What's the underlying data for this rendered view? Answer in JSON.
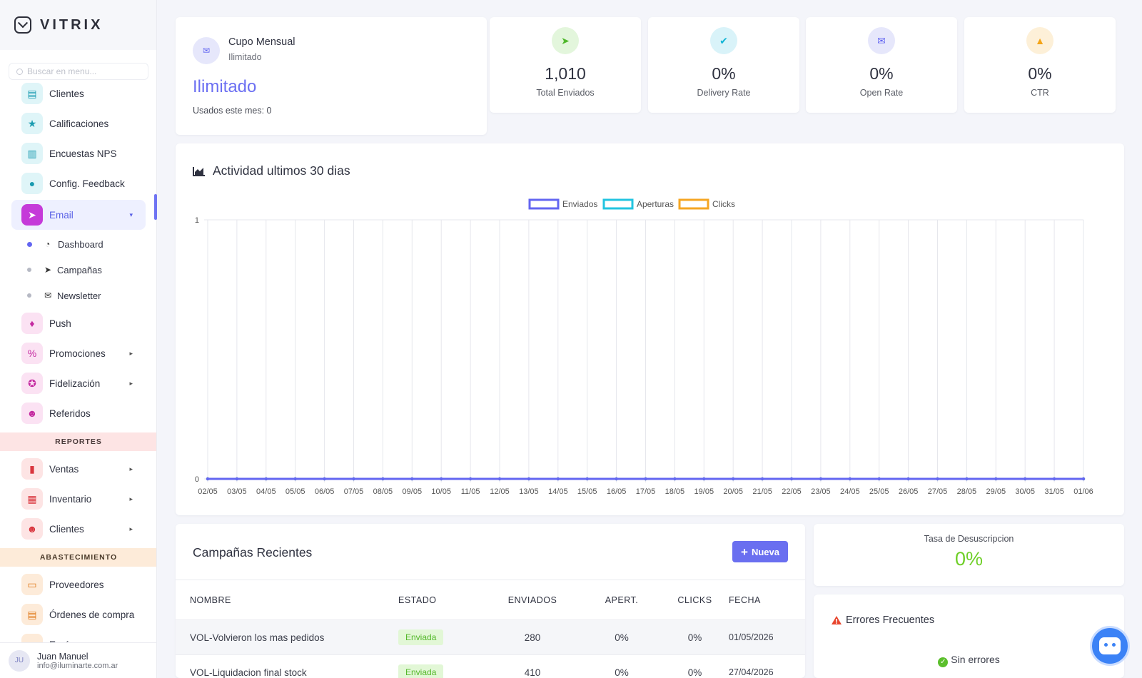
{
  "brand": {
    "name": "VITRIX"
  },
  "sidebar": {
    "search_placeholder": "Buscar en menu...",
    "items": [
      {
        "label": "Clientes",
        "icon": "address-book-icon",
        "glyph": "▤",
        "tone": "ic-cyan"
      },
      {
        "label": "Calificaciones",
        "icon": "star-icon",
        "glyph": "★",
        "tone": "ic-cyan"
      },
      {
        "label": "Encuestas NPS",
        "icon": "chart-square-icon",
        "glyph": "▥",
        "tone": "ic-cyan"
      },
      {
        "label": "Config. Feedback",
        "icon": "comments-icon",
        "glyph": "●",
        "tone": "ic-cyan"
      }
    ],
    "email": {
      "label": "Email",
      "icon": "paper-plane-icon",
      "glyph": "➤",
      "arrow": "▾",
      "subitems": [
        {
          "label": "Dashboard",
          "icon": "pie-chart-icon",
          "glyph": "◔",
          "active": true
        },
        {
          "label": "Campañas",
          "icon": "paper-plane-icon",
          "glyph": "➤",
          "active": false
        },
        {
          "label": "Newsletter",
          "icon": "envelope-open-icon",
          "glyph": "✉",
          "active": false
        }
      ]
    },
    "items2": [
      {
        "label": "Push",
        "icon": "bell-icon",
        "glyph": "♦",
        "tone": "ic-pink",
        "arrow": ""
      },
      {
        "label": "Promociones",
        "icon": "percent-icon",
        "glyph": "%",
        "tone": "ic-pink",
        "arrow": "▸"
      },
      {
        "label": "Fidelización",
        "icon": "medal-icon",
        "glyph": "✪",
        "tone": "ic-pink",
        "arrow": "▸"
      },
      {
        "label": "Referidos",
        "icon": "users-icon",
        "glyph": "☻",
        "tone": "ic-pink",
        "arrow": ""
      }
    ],
    "section_reportes": "REPORTES",
    "items3": [
      {
        "label": "Ventas",
        "icon": "bar-chart-icon",
        "glyph": "▮",
        "tone": "ic-red",
        "arrow": "▸"
      },
      {
        "label": "Inventario",
        "icon": "boxes-icon",
        "glyph": "▦",
        "tone": "ic-red",
        "arrow": "▸"
      },
      {
        "label": "Clientes",
        "icon": "users-icon",
        "glyph": "☻",
        "tone": "ic-red",
        "arrow": "▸"
      }
    ],
    "section_abastecimiento": "ABASTECIMIENTO",
    "items4": [
      {
        "label": "Proveedores",
        "icon": "id-card-icon",
        "glyph": "▭",
        "tone": "ic-orange",
        "arrow": ""
      },
      {
        "label": "Órdenes de compra",
        "icon": "file-invoice-icon",
        "glyph": "▤",
        "tone": "ic-orange",
        "arrow": ""
      },
      {
        "label": "Envíos",
        "icon": "truck-icon",
        "glyph": "▬",
        "tone": "ic-orange",
        "arrow": "▸"
      }
    ],
    "user": {
      "initials": "JU",
      "name": "Juan Manuel",
      "email": "info@iluminarte.com.ar"
    }
  },
  "quota": {
    "title": "Cupo Mensual",
    "subtitle": "Ilimitado",
    "value": "Ilimitado",
    "used": "Usados este mes: 0"
  },
  "stats": [
    {
      "value": "1,010",
      "label": "Total Enviados",
      "icon": "paper-plane-icon",
      "glyph": "➤",
      "bg": "#e3f6dc",
      "fg": "#4fb82b"
    },
    {
      "value": "0%",
      "label": "Delivery Rate",
      "icon": "check-double-icon",
      "glyph": "✔",
      "bg": "#d9f3f9",
      "fg": "#12b5d6"
    },
    {
      "value": "0%",
      "label": "Open Rate",
      "icon": "envelope-open-icon",
      "glyph": "✉",
      "bg": "#e6e7fb",
      "fg": "#6366f1"
    },
    {
      "value": "0%",
      "label": "CTR",
      "icon": "cursor-pointer-icon",
      "glyph": "▲",
      "bg": "#fdf0d8",
      "fg": "#f4a417"
    }
  ],
  "chart_title": "Actividad ultimos 30 dias",
  "chart_data": {
    "type": "line",
    "title": "",
    "x": [
      "02/05",
      "03/05",
      "04/05",
      "05/05",
      "06/05",
      "07/05",
      "08/05",
      "09/05",
      "10/05",
      "11/05",
      "12/05",
      "13/05",
      "14/05",
      "15/05",
      "16/05",
      "17/05",
      "18/05",
      "19/05",
      "20/05",
      "21/05",
      "22/05",
      "23/05",
      "24/05",
      "25/05",
      "26/05",
      "27/05",
      "28/05",
      "29/05",
      "30/05",
      "31/05",
      "01/06"
    ],
    "ylim": [
      0,
      1
    ],
    "yticks": [
      "0",
      "1"
    ],
    "legend_position": "top",
    "grid": true,
    "series": [
      {
        "name": "Enviados",
        "color": "#6366f1",
        "values": [
          0,
          0,
          0,
          0,
          0,
          0,
          0,
          0,
          0,
          0,
          0,
          0,
          0,
          0,
          0,
          0,
          0,
          0,
          0,
          0,
          0,
          0,
          0,
          0,
          0,
          0,
          0,
          0,
          0,
          0,
          0
        ]
      },
      {
        "name": "Aperturas",
        "color": "#22c4e0",
        "values": [
          0,
          0,
          0,
          0,
          0,
          0,
          0,
          0,
          0,
          0,
          0,
          0,
          0,
          0,
          0,
          0,
          0,
          0,
          0,
          0,
          0,
          0,
          0,
          0,
          0,
          0,
          0,
          0,
          0,
          0,
          0
        ]
      },
      {
        "name": "Clicks",
        "color": "#f5a623",
        "values": [
          0,
          0,
          0,
          0,
          0,
          0,
          0,
          0,
          0,
          0,
          0,
          0,
          0,
          0,
          0,
          0,
          0,
          0,
          0,
          0,
          0,
          0,
          0,
          0,
          0,
          0,
          0,
          0,
          0,
          0,
          0
        ]
      }
    ]
  },
  "campaigns": {
    "title": "Campañas Recientes",
    "new_label": "Nueva",
    "columns": [
      "NOMBRE",
      "ESTADO",
      "ENVIADOS",
      "APERT.",
      "CLICKS",
      "FECHA"
    ],
    "rows": [
      {
        "name": "VOL-Volvieron los mas pedidos",
        "status": "Enviada",
        "sent": "280",
        "opens": "0%",
        "clicks": "0%",
        "date": "01/05/2026"
      },
      {
        "name": "VOL-Liquidacion final stock",
        "status": "Enviada",
        "sent": "410",
        "opens": "0%",
        "clicks": "0%",
        "date": "27/04/2026"
      }
    ]
  },
  "unsubscribe": {
    "label": "Tasa de Desuscripcion",
    "value": "0%"
  },
  "errors": {
    "title": "Errores Frecuentes",
    "ok_text": "Sin errores"
  }
}
